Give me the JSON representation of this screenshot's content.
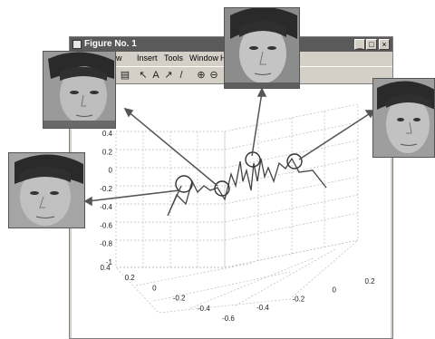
{
  "window": {
    "title": "Figure No. 1",
    "controls": {
      "minimize": "_",
      "maximize": "□",
      "close": "×"
    }
  },
  "menubar": {
    "items": [
      "iew",
      "Insert",
      "Tools",
      "Window",
      "H"
    ]
  },
  "toolbar": {
    "icons": [
      "print-icon",
      "arrow-select-icon",
      "text-icon",
      "arrow-icon",
      "line-icon",
      "zoom-in-icon",
      "zoom-out-icon"
    ],
    "glyphs": {
      "arrow": "↖",
      "text": "A",
      "arrowline": "↗",
      "line": "/",
      "zoom_in": "⊕",
      "zoom_out": "⊖",
      "print": "▤"
    }
  },
  "chart_data": {
    "type": "scatter",
    "title": "",
    "xlabel": "",
    "ylabel": "",
    "zlabel": "",
    "z_ticks": [
      "0.4",
      "0.2",
      "0",
      "-0.2",
      "-0.4",
      "-0.6",
      "-0.8",
      "-1"
    ],
    "y_ticks": [
      "0.4",
      "0.2",
      "0",
      "-0.2",
      "-0.4",
      "-0.6"
    ],
    "x_ticks": [
      "-0.4",
      "-0.2",
      "0",
      "0.2"
    ],
    "grid": true,
    "highlighted_points": 4
  },
  "photos": [
    {
      "name": "face-photo-left-upper"
    },
    {
      "name": "face-photo-left-lower"
    },
    {
      "name": "face-photo-top"
    },
    {
      "name": "face-photo-right"
    }
  ],
  "colors": {
    "titlebar": "#5a5a5a",
    "window": "#d4d0c8",
    "line": "#444444",
    "grid": "#bbbbbb"
  }
}
